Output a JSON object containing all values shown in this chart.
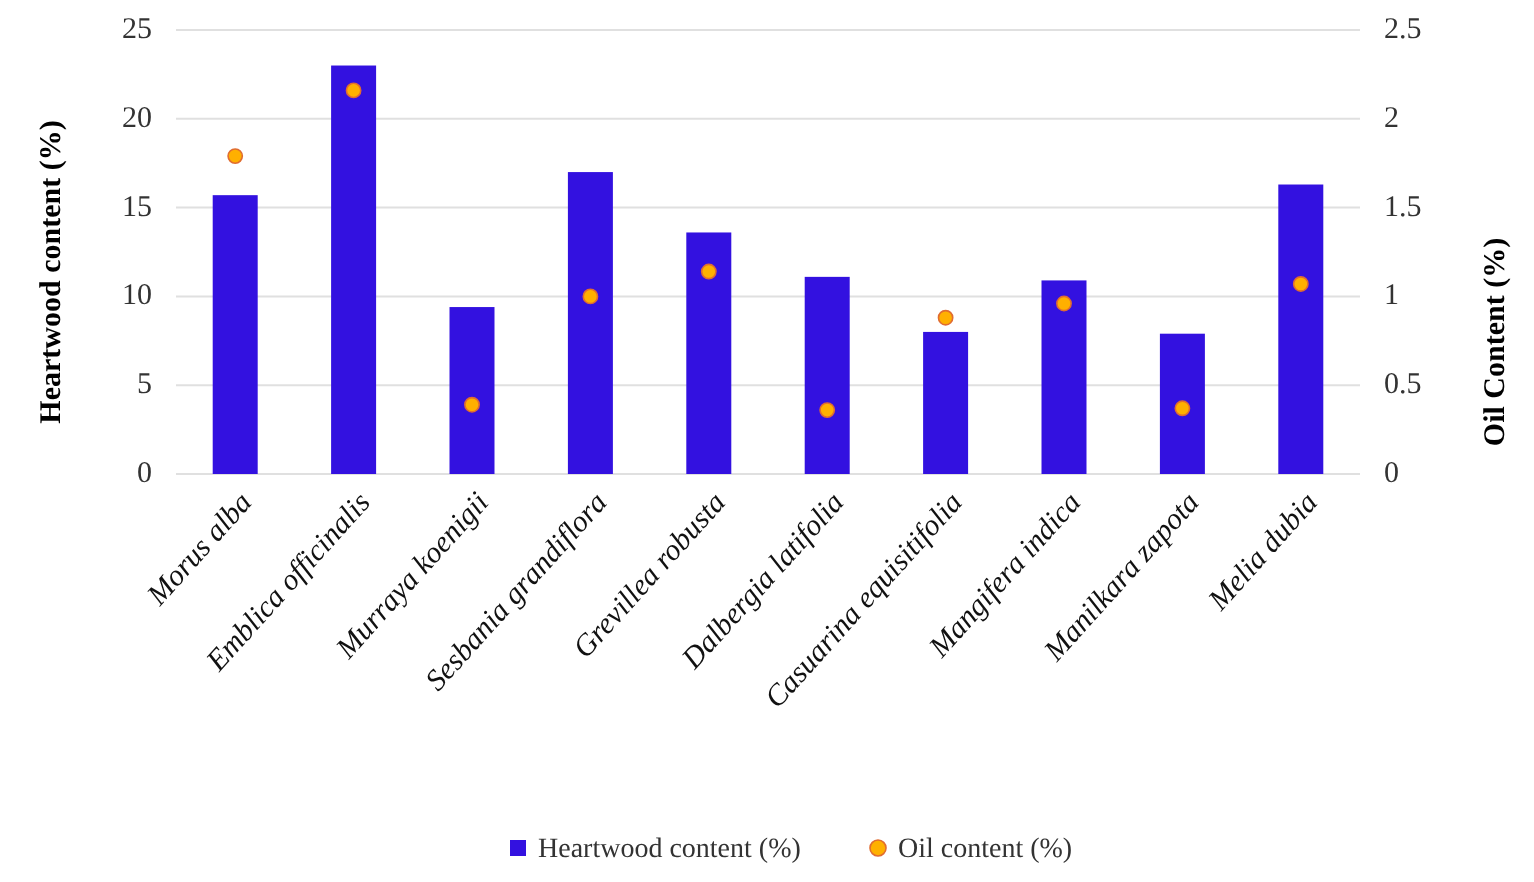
{
  "chart_data": {
    "type": "bar",
    "categories": [
      "Morus alba",
      "Emblica officinalis",
      "Murraya koenigii",
      "Sesbania grandiflora",
      "Grevillea robusta",
      "Dalbergia latifolia",
      "Casuarina equisitifolia",
      "Mangifera indica",
      "Manilkara zapota",
      "Melia dubia"
    ],
    "series": [
      {
        "name": "Heartwood content (%)",
        "color": "#3311e0",
        "values": [
          15.7,
          23.0,
          9.4,
          17.0,
          13.6,
          11.1,
          8.0,
          10.9,
          7.9,
          16.3
        ]
      },
      {
        "name": "Oil content (%)",
        "type": "scatter",
        "axis": "y2",
        "color": "#ffb000",
        "values": [
          1.79,
          2.16,
          0.39,
          1.0,
          1.14,
          0.36,
          0.88,
          0.96,
          0.37,
          1.07
        ]
      }
    ],
    "ylabel": "Heartwood content (%)",
    "y2label": "Oil Content (%)",
    "ylim": [
      0,
      25
    ],
    "yticks": [
      0,
      5,
      10,
      15,
      20,
      25
    ],
    "y2lim": [
      0,
      2.5
    ],
    "y2ticks": [
      0,
      {
        "value": 0.5,
        "label": "0.5"
      },
      1,
      {
        "value": 1.5,
        "label": "1.5"
      },
      2,
      {
        "value": 2.5,
        "label": "2.5"
      }
    ],
    "grid": "y",
    "legend": "bottom",
    "marker": "circle"
  }
}
